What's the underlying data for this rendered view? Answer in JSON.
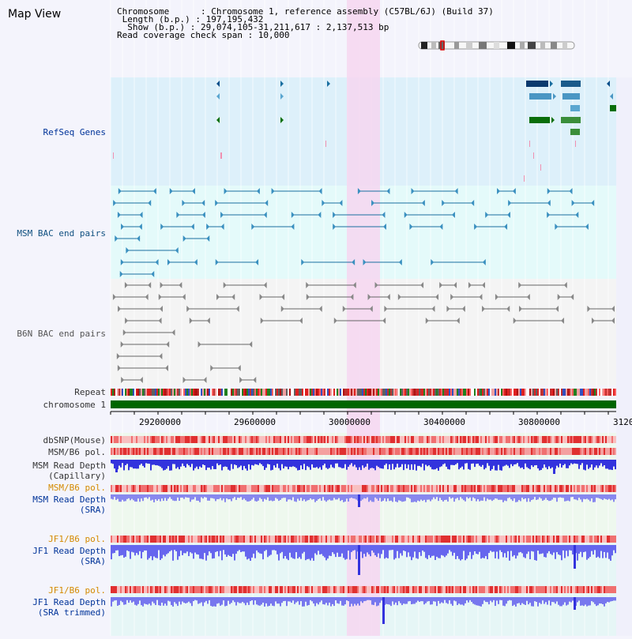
{
  "title": "Map View",
  "header": {
    "chromosome": "Chromosome      : Chromosome 1, reference assembly (C57BL/6J) (Build 37)",
    "length": " Length (b.p.) : 197,195,432",
    "show": "  Show (b.p.) : 29,074,105-31,211,617 : 2,137,513 bp",
    "coverage": "Read coverage check span : 10,000"
  },
  "tracks": {
    "refseq": "RefSeq Genes",
    "msm_bac": "MSM BAC end pairs",
    "b6n_bac": "B6N BAC end pairs",
    "repeat": "Repeat",
    "chromosome": "chromosome 1"
  },
  "axis": {
    "ticks": [
      "29200000",
      "29600000",
      "30000000",
      "30400000",
      "30800000",
      "3120"
    ]
  },
  "lower_tracks": {
    "dbsnp": "dbSNP(Mouse)",
    "msm_b6_pol_1": "MSM/B6 pol.",
    "msm_read_depth_cap_1": "MSM Read Depth",
    "msm_read_depth_cap_2": "(Capillary)",
    "msm_b6_pol_2": "MSM/B6 pol.",
    "msm_read_depth_sra_1": "MSM Read Depth",
    "msm_read_depth_sra_2": "(SRA)",
    "jf1_b6_pol_1": "JF1/B6 pol.",
    "jf1_read_depth_sra_1": "JF1 Read Depth",
    "jf1_read_depth_sra_2": "(SRA)",
    "jf1_b6_pol_2": "JF1/B6 pol.",
    "jf1_read_depth_trim_1": "JF1 Read Depth",
    "jf1_read_depth_trim_2": "(SRA trimmed)"
  },
  "colors": {
    "refseq_bg": "#ddf0fa",
    "msm_bg": "#e4fafa",
    "b6n_bg": "#f4f4f4",
    "highlight": "#f6d6f0",
    "chromosome_bar": "#006600",
    "gene_blue": "#0b4f8a",
    "gene_green": "#0a6e0a",
    "bac_line": "#1a6fa0",
    "b6n_line": "#666666",
    "read_depth": "#3333dd",
    "label_blue": "#003399",
    "label_orange": "#d48a00",
    "label_gray": "#333333"
  }
}
